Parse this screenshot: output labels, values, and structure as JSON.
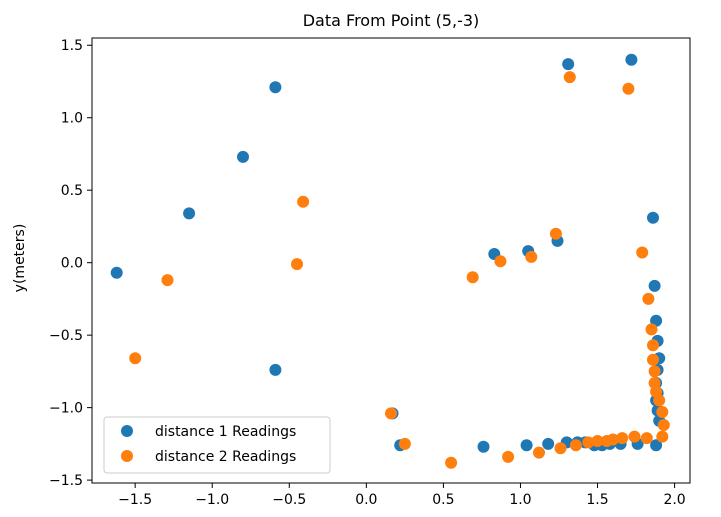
{
  "chart_data": {
    "type": "scatter",
    "title": "Data From Point (5,-3)",
    "xlabel": "",
    "ylabel": "y(meters)",
    "xlim": [
      -1.78,
      2.1
    ],
    "ylim": [
      -1.52,
      1.55
    ],
    "xticks": [
      -1.5,
      -1.0,
      -0.5,
      0.0,
      0.5,
      1.0,
      1.5,
      2.0
    ],
    "xtick_labels": [
      "−1.5",
      "−1.0",
      "−0.5",
      "0.0",
      "0.5",
      "1.0",
      "1.5",
      "2.0"
    ],
    "yticks": [
      -1.5,
      -1.0,
      -0.5,
      0.0,
      0.5,
      1.0,
      1.5
    ],
    "ytick_labels": [
      "−1.5",
      "−1.0",
      "−0.5",
      "0.0",
      "0.5",
      "1.0",
      "1.5"
    ],
    "grid": false,
    "legend_position": "lower-left",
    "series": [
      {
        "name": "distance 1 Readings",
        "color": "#1f77b4",
        "points": [
          [
            -1.62,
            -0.07
          ],
          [
            -1.15,
            0.34
          ],
          [
            -0.8,
            0.73
          ],
          [
            -0.59,
            1.21
          ],
          [
            -0.59,
            -0.74
          ],
          [
            0.17,
            -1.04
          ],
          [
            0.22,
            -1.26
          ],
          [
            0.76,
            -1.27
          ],
          [
            0.83,
            0.06
          ],
          [
            1.04,
            -1.26
          ],
          [
            1.05,
            0.08
          ],
          [
            1.18,
            -1.25
          ],
          [
            1.24,
            0.15
          ],
          [
            1.3,
            -1.24
          ],
          [
            1.31,
            1.37
          ],
          [
            1.37,
            -1.24
          ],
          [
            1.42,
            -1.24
          ],
          [
            1.48,
            -1.26
          ],
          [
            1.53,
            -1.26
          ],
          [
            1.58,
            -1.25
          ],
          [
            1.65,
            -1.25
          ],
          [
            1.72,
            1.4
          ],
          [
            1.76,
            -1.25
          ],
          [
            1.86,
            0.31
          ],
          [
            1.87,
            -0.16
          ],
          [
            1.88,
            -0.4
          ],
          [
            1.89,
            -0.54
          ],
          [
            1.9,
            -0.66
          ],
          [
            1.89,
            -0.74
          ],
          [
            1.88,
            -0.83
          ],
          [
            1.89,
            -0.9
          ],
          [
            1.88,
            -0.95
          ],
          [
            1.89,
            -1.02
          ],
          [
            1.9,
            -1.09
          ],
          [
            1.88,
            -1.26
          ]
        ]
      },
      {
        "name": "distance 2 Readings",
        "color": "#ff7f0e",
        "points": [
          [
            -1.5,
            -0.66
          ],
          [
            -1.29,
            -0.12
          ],
          [
            -0.45,
            -0.01
          ],
          [
            -0.41,
            0.42
          ],
          [
            0.16,
            -1.04
          ],
          [
            0.25,
            -1.25
          ],
          [
            0.55,
            -1.38
          ],
          [
            0.69,
            -0.1
          ],
          [
            0.87,
            0.01
          ],
          [
            0.92,
            -1.34
          ],
          [
            1.07,
            0.04
          ],
          [
            1.12,
            -1.31
          ],
          [
            1.23,
            0.2
          ],
          [
            1.26,
            -1.28
          ],
          [
            1.32,
            1.28
          ],
          [
            1.36,
            -1.26
          ],
          [
            1.44,
            -1.24
          ],
          [
            1.5,
            -1.23
          ],
          [
            1.56,
            -1.23
          ],
          [
            1.6,
            -1.22
          ],
          [
            1.66,
            -1.21
          ],
          [
            1.7,
            1.2
          ],
          [
            1.74,
            -1.2
          ],
          [
            1.79,
            0.07
          ],
          [
            1.82,
            -1.21
          ],
          [
            1.83,
            -0.25
          ],
          [
            1.85,
            -0.46
          ],
          [
            1.86,
            -0.57
          ],
          [
            1.86,
            -0.67
          ],
          [
            1.87,
            -0.75
          ],
          [
            1.87,
            -0.83
          ],
          [
            1.88,
            -0.89
          ],
          [
            1.9,
            -0.95
          ],
          [
            1.92,
            -1.03
          ],
          [
            1.93,
            -1.12
          ],
          [
            1.92,
            -1.2
          ]
        ]
      }
    ]
  }
}
